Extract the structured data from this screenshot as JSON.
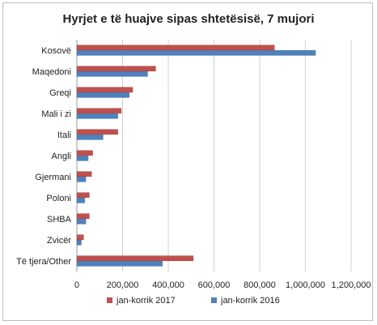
{
  "chart_data": {
    "type": "bar",
    "orientation": "horizontal",
    "title": "Hyrjet e të huajve sipas shtetësisë, 7 mujori",
    "categories": [
      "Kosovë",
      "Maqedoni",
      "Greqi",
      "Mali i zi",
      "Itali",
      "Angli",
      "Gjermani",
      "Poloni",
      "SHBA",
      "Zvicër",
      "Të tjera/Other"
    ],
    "series": [
      {
        "name": "jan-korrik 2017",
        "color": "#c0504d",
        "values": [
          865000,
          345000,
          245000,
          195000,
          180000,
          70000,
          65000,
          55000,
          55000,
          30000,
          510000
        ]
      },
      {
        "name": "jan-korrik 2016",
        "color": "#4f81bd",
        "values": [
          1045000,
          310000,
          230000,
          180000,
          115000,
          50000,
          40000,
          35000,
          40000,
          20000,
          375000
        ]
      }
    ],
    "xlim": [
      0,
      1200000
    ],
    "xticks": [
      "0",
      "200,000",
      "400,000",
      "600,000",
      "800,000",
      "1,000,000",
      "1,200,000"
    ],
    "xtick_values": [
      0,
      200000,
      400000,
      600000,
      800000,
      1000000,
      1200000
    ],
    "grid": true,
    "legend_position": "bottom"
  }
}
